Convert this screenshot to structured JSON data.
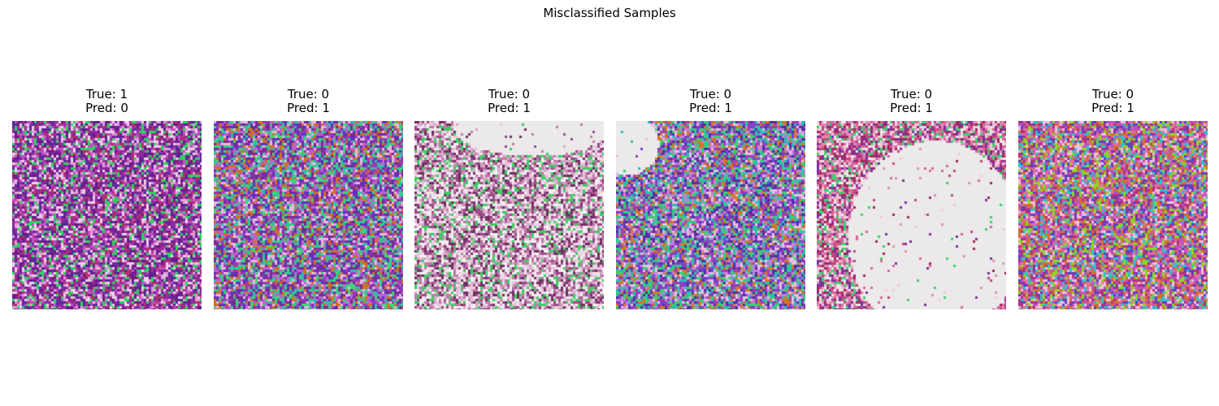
{
  "figure": {
    "title": "Misclassified Samples"
  },
  "samples": [
    {
      "true_label": "True: 1",
      "pred_label": "Pred: 0",
      "palette": [
        "#8e2aa0",
        "#c04fc0",
        "#6a1a8a",
        "#2bd45c",
        "#e0a0d8",
        "#5a2a9a",
        "#b03070",
        "#f0d0ec"
      ],
      "void": null
    },
    {
      "true_label": "True: 0",
      "pred_label": "Pred: 1",
      "palette": [
        "#9a3ab0",
        "#3ad878",
        "#d07020",
        "#6030c0",
        "#c060d0",
        "#30c0a0",
        "#e8b8e0",
        "#7a2a90"
      ],
      "void": null
    },
    {
      "true_label": "True: 0",
      "pred_label": "Pred: 1",
      "palette": [
        "#e8c8dc",
        "#d4a8c8",
        "#f0e4ec",
        "#3ad060",
        "#9a4a8a",
        "#c07aa8",
        "#703060",
        "#f6f0f4"
      ],
      "void": "top-right"
    },
    {
      "true_label": "True: 0",
      "pred_label": "Pred: 1",
      "palette": [
        "#7a40d0",
        "#d07828",
        "#3ad070",
        "#a040b0",
        "#5030a0",
        "#c880d8",
        "#2ac0b0",
        "#e8c0e0"
      ],
      "void": "top-left-small"
    },
    {
      "true_label": "True: 0",
      "pred_label": "Pred: 1",
      "palette": [
        "#c04880",
        "#e090b8",
        "#a02860",
        "#3ad070",
        "#f0c8dc",
        "#8030a0",
        "#d86898",
        "#ece8ea"
      ],
      "void": "center-large"
    },
    {
      "true_label": "True: 0",
      "pred_label": "Pred: 1",
      "palette": [
        "#b03080",
        "#30c0c8",
        "#8ad820",
        "#d07030",
        "#6040c0",
        "#c050c0",
        "#e070a0",
        "#f0c0e0"
      ],
      "void": null
    }
  ]
}
